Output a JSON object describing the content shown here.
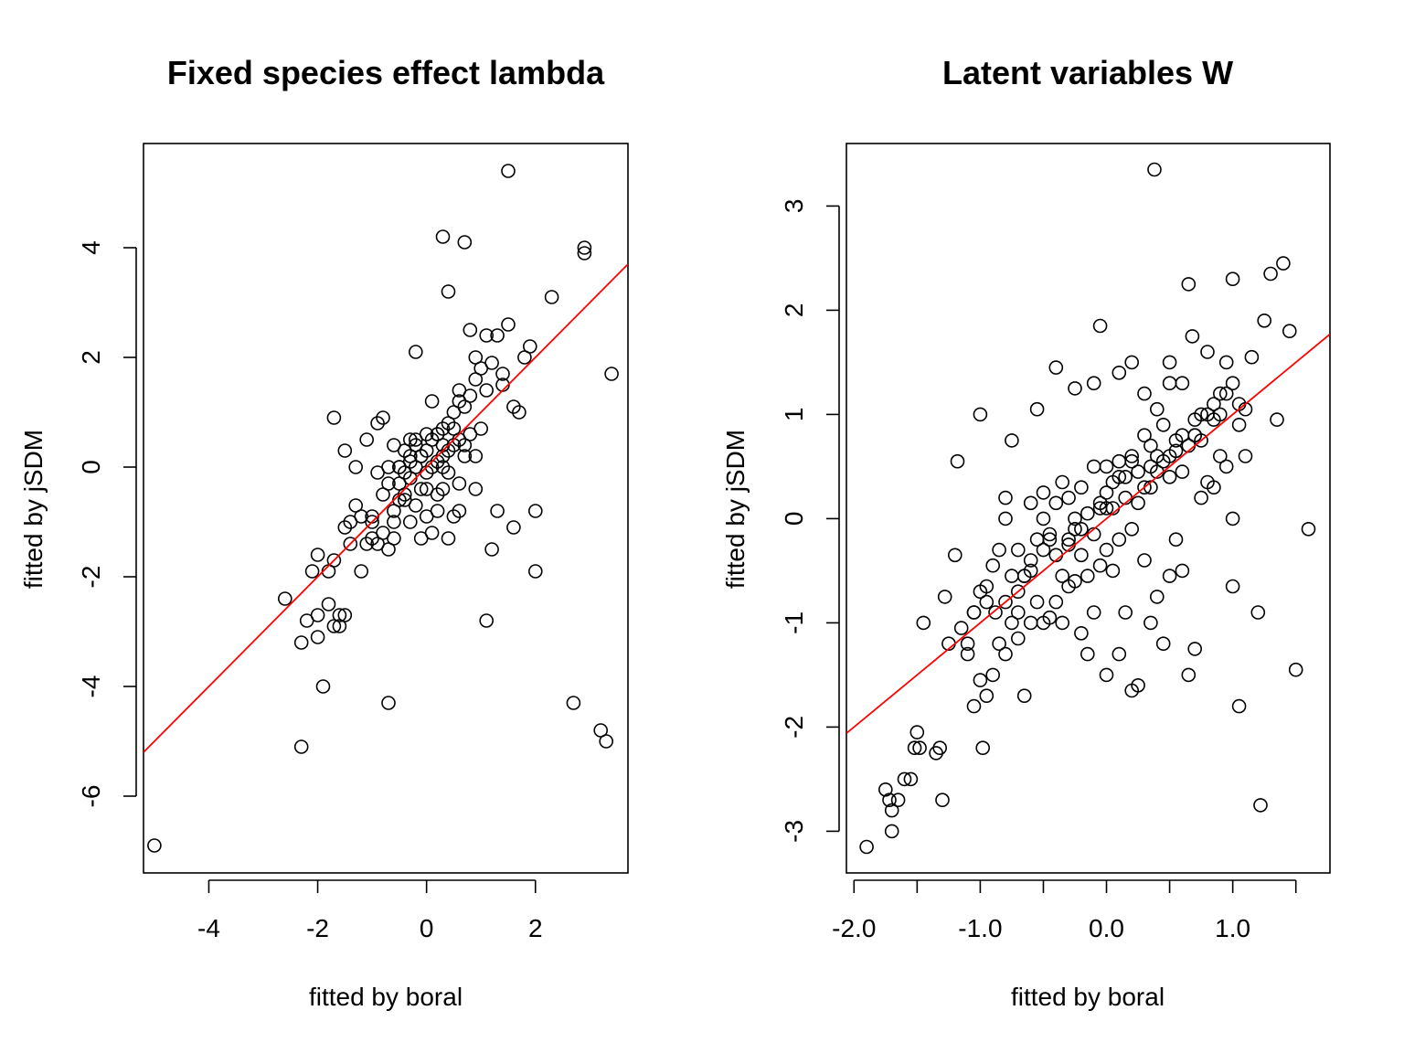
{
  "chart_data": [
    {
      "type": "scatter",
      "title": "Fixed species effect lambda",
      "xlabel": "fitted by boral",
      "ylabel": "fitted by jSDM",
      "xlim": [
        -5.2,
        3.7
      ],
      "ylim": [
        -7.4,
        5.9
      ],
      "xticks": [
        -4,
        -2,
        0,
        2
      ],
      "xtick_labels": [
        "-4",
        "-2",
        "0",
        "2"
      ],
      "yticks": [
        -6,
        -4,
        -2,
        0,
        2,
        4
      ],
      "ytick_labels": [
        "-6",
        "-4",
        "-2",
        "0",
        "2",
        "4"
      ],
      "grid": false,
      "reference_line": {
        "color": "#ff0000",
        "intercept": 0,
        "slope": 1
      },
      "x": [
        -5.0,
        -2.6,
        -2.3,
        -2.3,
        -2.2,
        -2.1,
        -2.0,
        -2.0,
        -2.0,
        -1.9,
        -1.8,
        -1.8,
        -1.7,
        -1.7,
        -1.6,
        -1.6,
        -1.5,
        -1.5,
        -1.4,
        -1.3,
        -1.3,
        -1.2,
        -1.1,
        -1.1,
        -1.0,
        -1.0,
        -1.0,
        -0.9,
        -0.9,
        -0.8,
        -0.8,
        -0.8,
        -0.7,
        -0.7,
        -0.7,
        -0.6,
        -0.6,
        -0.6,
        -0.5,
        -0.5,
        -0.5,
        -0.4,
        -0.4,
        -0.4,
        -0.3,
        -0.3,
        -0.3,
        -0.2,
        -0.2,
        -0.2,
        -0.1,
        -0.1,
        -0.1,
        0.0,
        0.0,
        0.0,
        0.1,
        0.1,
        0.1,
        0.2,
        0.2,
        0.2,
        0.3,
        0.3,
        0.3,
        0.4,
        0.4,
        0.4,
        0.5,
        0.5,
        0.5,
        0.6,
        0.6,
        0.6,
        0.7,
        0.7,
        0.8,
        0.8,
        0.9,
        0.9,
        1.0,
        1.0,
        1.1,
        1.1,
        1.2,
        1.3,
        1.4,
        1.5,
        1.6,
        1.7,
        1.9,
        2.0,
        2.0,
        2.3,
        2.7,
        2.9,
        2.9,
        3.2,
        3.3,
        3.4,
        1.5,
        0.3,
        0.7,
        0.4,
        -0.2,
        -1.7,
        -1.5,
        -0.6,
        -0.3,
        0.0,
        0.3,
        0.6,
        0.9,
        1.3,
        1.6,
        1.8,
        -0.4,
        -0.1,
        0.2,
        0.5,
        0.8,
        -0.9,
        -1.4,
        -0.5,
        0.4,
        1.1,
        -0.2,
        0.1,
        0.7,
        1.2,
        -0.7,
        0.0,
        0.3,
        0.6,
        -1.2,
        -0.3,
        0.2,
        0.9,
        1.4
      ],
      "y": [
        -6.9,
        -2.4,
        -3.2,
        -5.1,
        -2.8,
        -1.9,
        -2.7,
        -3.1,
        -1.6,
        -4.0,
        -1.9,
        -2.5,
        -1.7,
        -2.9,
        -2.9,
        -2.7,
        -1.1,
        0.3,
        -1.0,
        -0.7,
        0.0,
        -1.9,
        -1.4,
        0.5,
        -1.3,
        -0.9,
        -1.0,
        -1.4,
        0.8,
        -1.2,
        -0.5,
        0.9,
        -1.5,
        0.0,
        -4.3,
        -0.8,
        -1.3,
        0.4,
        -0.6,
        -0.3,
        0.0,
        -0.5,
        -0.1,
        0.3,
        -1.0,
        -0.2,
        0.1,
        -0.7,
        0.0,
        0.4,
        -1.3,
        -0.4,
        0.2,
        -0.9,
        -0.1,
        0.3,
        -1.2,
        0.0,
        0.5,
        -0.8,
        0.1,
        0.6,
        -0.4,
        0.2,
        0.7,
        -1.3,
        0.3,
        0.8,
        -0.9,
        0.4,
        1.0,
        -0.8,
        0.5,
        1.4,
        0.4,
        1.1,
        0.6,
        1.3,
        -0.4,
        1.6,
        0.7,
        1.8,
        -2.8,
        1.4,
        -1.5,
        -0.8,
        1.7,
        2.6,
        -1.1,
        1.0,
        2.2,
        -0.8,
        -1.9,
        3.1,
        -4.3,
        4.0,
        3.9,
        -4.8,
        -5.0,
        1.7,
        5.4,
        4.2,
        4.1,
        3.2,
        2.1,
        0.9,
        -2.7,
        -1.0,
        0.5,
        0.6,
        0.0,
        -0.3,
        0.2,
        2.4,
        1.1,
        2.0,
        -0.6,
        0.2,
        -0.5,
        0.7,
        2.5,
        -0.1,
        -1.4,
        0.0,
        -0.1,
        2.4,
        0.5,
        1.2,
        0.2,
        1.9,
        -0.3,
        -0.4,
        0.4,
        1.2,
        -0.9,
        0.2,
        0.6,
        2.0,
        1.5
      ]
    },
    {
      "type": "scatter",
      "title": "Latent variables W",
      "xlabel": "fitted by boral",
      "ylabel": "fitted by jSDM",
      "xlim": [
        -2.06,
        1.77
      ],
      "ylim": [
        -3.4,
        3.6
      ],
      "xticks": [
        -2.0,
        -1.5,
        -1.0,
        -0.5,
        0.0,
        0.5,
        1.0,
        1.5
      ],
      "xtick_labels": [
        "-2.0",
        "",
        "-1.0",
        "",
        "0.0",
        "",
        "1.0",
        ""
      ],
      "yticks": [
        -3,
        -2,
        -1,
        0,
        1,
        2,
        3
      ],
      "ytick_labels": [
        "-3",
        "-2",
        "-1",
        "0",
        "1",
        "2",
        "3"
      ],
      "grid": false,
      "reference_line": {
        "color": "#ff0000",
        "intercept": 0,
        "slope": 1
      },
      "x": [
        -1.9,
        -1.75,
        -1.72,
        -1.7,
        -1.7,
        -1.65,
        -1.6,
        -1.55,
        -1.52,
        -1.5,
        -1.48,
        -1.45,
        -1.35,
        -1.32,
        -1.3,
        -1.28,
        -1.25,
        -1.2,
        -1.15,
        -1.1,
        -1.1,
        -1.05,
        -1.05,
        -1.0,
        -1.0,
        -0.98,
        -0.95,
        -0.95,
        -0.9,
        -0.9,
        -0.88,
        -0.85,
        -0.85,
        -0.8,
        -0.8,
        -0.8,
        -0.75,
        -0.75,
        -0.7,
        -0.7,
        -0.7,
        -0.65,
        -0.65,
        -0.6,
        -0.6,
        -0.6,
        -0.55,
        -0.55,
        -0.5,
        -0.5,
        -0.5,
        -0.45,
        -0.45,
        -0.4,
        -0.4,
        -0.4,
        -0.35,
        -0.35,
        -0.3,
        -0.3,
        -0.3,
        -0.25,
        -0.25,
        -0.2,
        -0.2,
        -0.2,
        -0.15,
        -0.15,
        -0.1,
        -0.1,
        -0.1,
        -0.05,
        -0.05,
        0.0,
        0.0,
        0.0,
        0.05,
        0.05,
        0.1,
        0.1,
        0.1,
        0.15,
        0.15,
        0.2,
        0.2,
        0.2,
        0.25,
        0.25,
        0.3,
        0.3,
        0.3,
        0.35,
        0.35,
        0.4,
        0.4,
        0.4,
        0.45,
        0.45,
        0.5,
        0.5,
        0.5,
        0.55,
        0.55,
        0.6,
        0.6,
        0.6,
        0.65,
        0.65,
        0.7,
        0.7,
        0.75,
        0.75,
        0.8,
        0.8,
        0.85,
        0.85,
        0.9,
        0.9,
        0.95,
        0.95,
        1.0,
        1.0,
        1.05,
        1.05,
        1.1,
        1.15,
        1.2,
        1.22,
        1.25,
        1.3,
        1.35,
        1.4,
        1.45,
        1.5,
        1.6,
        0.38,
        0.65,
        0.68,
        0.3,
        0.2,
        -0.05,
        -0.1,
        -0.4,
        -1.18,
        -1.0,
        -0.75,
        -0.55,
        -0.25,
        0.1,
        0.5,
        0.8,
        1.0,
        -0.8,
        -0.5,
        -0.2,
        0.1,
        0.4,
        0.7,
        1.0,
        -0.35,
        0.0,
        0.35,
        0.75,
        -0.65,
        -0.15,
        0.25,
        0.55,
        0.9,
        -0.95,
        -0.45,
        0.05,
        0.45,
        0.85,
        -0.3,
        0.15,
        0.6,
        1.05,
        -0.6,
        -0.05,
        0.35,
        0.95,
        -1.05,
        -0.25,
        0.2,
        0.7,
        -0.7,
        0.0,
        0.5,
        1.1
      ],
      "y": [
        -3.15,
        -2.6,
        -2.7,
        -2.8,
        -3.0,
        -2.7,
        -2.5,
        -2.5,
        -2.2,
        -2.05,
        -2.2,
        -1.0,
        -2.25,
        -2.2,
        -2.7,
        -0.75,
        -1.2,
        -0.35,
        -1.05,
        -1.2,
        -1.3,
        -1.8,
        -0.9,
        -1.55,
        -0.7,
        -2.2,
        -1.7,
        -0.65,
        -1.5,
        -0.45,
        -0.9,
        -1.2,
        -0.3,
        -1.3,
        -0.8,
        0.0,
        -1.0,
        -0.55,
        -1.15,
        -0.9,
        -0.3,
        -1.7,
        -0.55,
        -1.0,
        -0.4,
        0.15,
        -0.8,
        -0.2,
        -1.0,
        -0.3,
        0.25,
        -0.95,
        -0.15,
        -0.8,
        -0.35,
        0.15,
        -1.0,
        -0.55,
        -0.65,
        -0.2,
        0.2,
        -0.6,
        -0.1,
        -1.1,
        -0.35,
        0.3,
        -1.3,
        -0.55,
        -0.9,
        -0.15,
        0.5,
        -0.45,
        0.1,
        -1.5,
        -0.3,
        0.25,
        -0.5,
        0.1,
        -1.3,
        -0.2,
        0.55,
        -0.9,
        0.2,
        -1.65,
        -0.1,
        0.6,
        -1.6,
        0.15,
        -0.4,
        0.3,
        0.8,
        -1.0,
        0.3,
        -0.75,
        0.45,
        1.05,
        -1.2,
        0.55,
        -0.55,
        0.6,
        1.3,
        -0.2,
        0.75,
        -0.5,
        0.45,
        1.3,
        -1.5,
        0.7,
        -1.25,
        0.8,
        0.2,
        1.0,
        0.35,
        1.0,
        0.3,
        1.1,
        0.6,
        1.2,
        0.5,
        1.5,
        0.0,
        1.3,
        -1.8,
        0.9,
        1.05,
        1.55,
        -0.9,
        -2.75,
        1.9,
        2.35,
        0.95,
        2.45,
        1.8,
        -1.45,
        -0.1,
        3.35,
        2.25,
        1.75,
        1.2,
        1.5,
        1.85,
        1.3,
        1.45,
        0.55,
        1.0,
        0.75,
        1.05,
        1.25,
        1.4,
        1.5,
        1.6,
        2.3,
        0.2,
        0.0,
        -0.1,
        0.4,
        0.6,
        0.8,
        -0.65,
        0.35,
        0.5,
        0.7,
        0.75,
        -0.55,
        0.05,
        0.45,
        0.65,
        1.0,
        -0.8,
        -0.2,
        0.35,
        0.9,
        0.95,
        -0.25,
        0.4,
        0.8,
        1.1,
        -0.5,
        0.15,
        0.5,
        1.2,
        -0.9,
        0.0,
        0.55,
        0.95,
        -0.7,
        0.1,
        0.4,
        0.6
      ]
    }
  ]
}
